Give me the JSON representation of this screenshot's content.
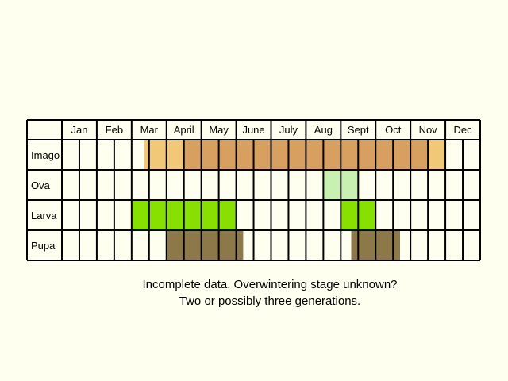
{
  "months": [
    "Jan",
    "Feb",
    "Mar",
    "April",
    "May",
    "June",
    "July",
    "Aug",
    "Sept",
    "Oct",
    "Nov",
    "Dec"
  ],
  "stages": [
    "Imago",
    "Ova",
    "Larva",
    "Pupa"
  ],
  "stage_fills": [
    [
      {
        "from": 4.7,
        "to": 7,
        "color": "#f0c878"
      },
      {
        "from": 7,
        "to": 21,
        "color": "#d8a060"
      },
      {
        "from": 21,
        "to": 22,
        "color": "#f0c878"
      }
    ],
    [
      {
        "from": 15,
        "to": 17,
        "color": "#c8f0b0"
      }
    ],
    [
      {
        "from": 4,
        "to": 10,
        "color": "#88e000"
      },
      {
        "from": 16,
        "to": 18,
        "color": "#88e000"
      }
    ],
    [
      {
        "from": 6,
        "to": 10.4,
        "color": "#8c7848"
      },
      {
        "from": 16.6,
        "to": 19.4,
        "color": "#8c7848"
      }
    ]
  ],
  "colors": {
    "background": "#fffff0",
    "grid": "#000000"
  },
  "caption": {
    "line1": "Incomplete data. Overwintering stage unknown?",
    "line2": "Two or possibly three generations."
  }
}
